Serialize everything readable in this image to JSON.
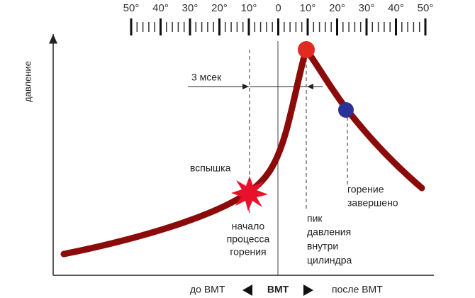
{
  "scale": {
    "labels": [
      "50°",
      "40°",
      "30°",
      "20°",
      "10°",
      "0",
      "10°",
      "20°",
      "30°",
      "40°",
      "50°"
    ]
  },
  "axis": {
    "y_label": "давление"
  },
  "interval": {
    "label": "3 мсек"
  },
  "annotations": {
    "flash": "вспышка",
    "combustion_start": [
      "начало",
      "процесса",
      "горения"
    ],
    "pressure_peak": [
      "пик",
      "давления",
      "внутри",
      "цилиндра"
    ],
    "combustion_end": [
      "горение",
      "завершено"
    ]
  },
  "footer": {
    "before": "до ВМТ",
    "center": "ВМТ",
    "after": "после ВМТ"
  }
}
